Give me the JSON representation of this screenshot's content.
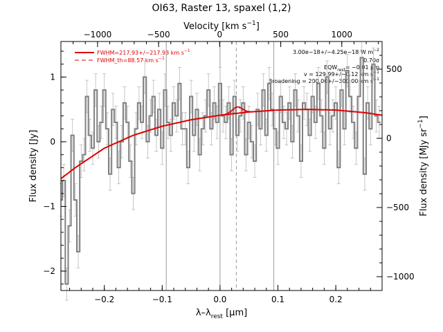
{
  "chart_data": {
    "type": "line",
    "title": "OI63, Raster 13, spaxel (1,2)",
    "xlabel": "λ–λ",
    "xlabel_sub": "rest",
    "xlabel_unit": " [μm]",
    "ylabel_left": "Flux density [Jy]",
    "ylabel_right": "Flux density [MJy sr",
    "ylabel_right_sup": "−1",
    "ylabel_right_end": "]",
    "top_axis_label": "Velocity [km s",
    "top_axis_sup": "−1",
    "top_axis_end": "]",
    "xlim": [
      -0.275,
      0.28
    ],
    "ylim": [
      -2.3,
      1.55
    ],
    "right_ylim": [
      -1100,
      700
    ],
    "top_xlim": [
      -1300,
      1330
    ],
    "x_ticks": [
      -0.2,
      -0.1,
      0.0,
      0.1,
      0.2
    ],
    "x_tick_labels": [
      "−0.2",
      "−0.1",
      "0.0",
      "0.1",
      "0.2"
    ],
    "y_ticks": [
      -2,
      -1,
      0,
      1
    ],
    "y_tick_labels": [
      "−2",
      "−1",
      "0",
      "1"
    ],
    "right_ticks": [
      -1000,
      -500,
      0,
      500
    ],
    "right_tick_labels": [
      "−1000",
      "−500",
      "0",
      "500"
    ],
    "top_ticks": [
      -1000,
      -500,
      0,
      500,
      1000
    ],
    "top_tick_labels": [
      "−1000",
      "−500",
      "0",
      "500",
      "1000"
    ],
    "vlines_solid": [
      -0.093,
      0.0,
      0.093
    ],
    "vline_dashed": 0.028,
    "legend": [
      {
        "text": "FWHM=217.93+/−217.93 km s",
        "sup": "−1",
        "style": "solid"
      },
      {
        "text": "FWHM_th=88.57 km s",
        "sup": "−1",
        "style": "dashed"
      }
    ],
    "annotations": [
      "3.00e−18+/−4.25e−18 W m",
      "0.70σ",
      "EQW",
      "= −0.01 μm",
      "v = 129.99+/−0.12 km s",
      "Broadening = 200.00+/−300.00 km s"
    ],
    "spectrum": {
      "x": [
        -0.275,
        -0.27,
        -0.265,
        -0.26,
        -0.255,
        -0.25,
        -0.245,
        -0.24,
        -0.235,
        -0.23,
        -0.225,
        -0.22,
        -0.215,
        -0.21,
        -0.205,
        -0.2,
        -0.195,
        -0.19,
        -0.185,
        -0.18,
        -0.175,
        -0.17,
        -0.165,
        -0.16,
        -0.155,
        -0.15,
        -0.145,
        -0.14,
        -0.135,
        -0.13,
        -0.125,
        -0.12,
        -0.115,
        -0.11,
        -0.105,
        -0.1,
        -0.095,
        -0.09,
        -0.085,
        -0.08,
        -0.075,
        -0.07,
        -0.065,
        -0.06,
        -0.055,
        -0.05,
        -0.045,
        -0.04,
        -0.035,
        -0.03,
        -0.025,
        -0.02,
        -0.015,
        -0.01,
        -0.005,
        0.0,
        0.005,
        0.01,
        0.015,
        0.02,
        0.025,
        0.03,
        0.035,
        0.04,
        0.045,
        0.05,
        0.055,
        0.06,
        0.065,
        0.07,
        0.075,
        0.08,
        0.085,
        0.09,
        0.095,
        0.1,
        0.105,
        0.11,
        0.115,
        0.12,
        0.125,
        0.13,
        0.135,
        0.14,
        0.145,
        0.15,
        0.155,
        0.16,
        0.165,
        0.17,
        0.175,
        0.18,
        0.185,
        0.19,
        0.195,
        0.2,
        0.205,
        0.21,
        0.215,
        0.22,
        0.225,
        0.23,
        0.235,
        0.24,
        0.245,
        0.25,
        0.255,
        0.26,
        0.265,
        0.27,
        0.275
      ],
      "y": [
        -0.9,
        -0.6,
        -2.2,
        -1.3,
        0.1,
        -0.9,
        -1.7,
        -0.3,
        -0.2,
        0.7,
        0.1,
        -0.1,
        0.8,
        0.0,
        0.3,
        0.8,
        0.2,
        -0.5,
        0.5,
        0.3,
        -0.4,
        0.0,
        0.6,
        0.3,
        -0.3,
        -0.8,
        0.2,
        0.6,
        0.3,
        1.0,
        0.0,
        0.4,
        0.7,
        0.1,
        0.5,
        -0.1,
        0.8,
        0.3,
        0.1,
        0.6,
        0.4,
        0.9,
        0.2,
        0.2,
        -0.4,
        0.7,
        0.1,
        0.5,
        -0.2,
        0.2,
        0.4,
        0.8,
        0.2,
        0.6,
        0.3,
        0.9,
        0.4,
        0.3,
        0.6,
        -0.2,
        0.7,
        0.1,
        0.4,
        0.6,
        -0.2,
        0.3,
        0.0,
        -0.3,
        0.5,
        0.2,
        0.8,
        0.1,
        0.9,
        0.5,
        0.2,
        -0.1,
        0.7,
        0.3,
        0.2,
        0.6,
        0.0,
        0.8,
        0.4,
        -0.3,
        0.6,
        0.5,
        0.1,
        0.7,
        0.3,
        0.9,
        0.4,
        -0.1,
        1.0,
        0.2,
        0.4,
        0.6,
        -0.4,
        0.8,
        0.2,
        1.1,
        0.7,
        0.3,
        -0.1,
        0.7,
        1.3,
        -0.5,
        0.6,
        0.2,
        1.2,
        0.4,
        0.3
      ],
      "err": 0.25,
      "color": "#808080"
    },
    "continuum_fit": {
      "x": [
        -0.275,
        -0.25,
        -0.2,
        -0.15,
        -0.1,
        -0.05,
        0.0,
        0.05,
        0.1,
        0.15,
        0.2,
        0.25,
        0.28
      ],
      "y": [
        -0.57,
        -0.4,
        -0.1,
        0.1,
        0.24,
        0.34,
        0.41,
        0.46,
        0.49,
        0.5,
        0.49,
        0.45,
        0.41
      ],
      "color": "#dd0000"
    },
    "line_peak": {
      "center": 0.03,
      "height": 0.1,
      "sigma": 0.009
    },
    "colors": {
      "data": "#808080",
      "fit": "#dd0000",
      "grid": "#808080",
      "axis": "#000000"
    }
  }
}
